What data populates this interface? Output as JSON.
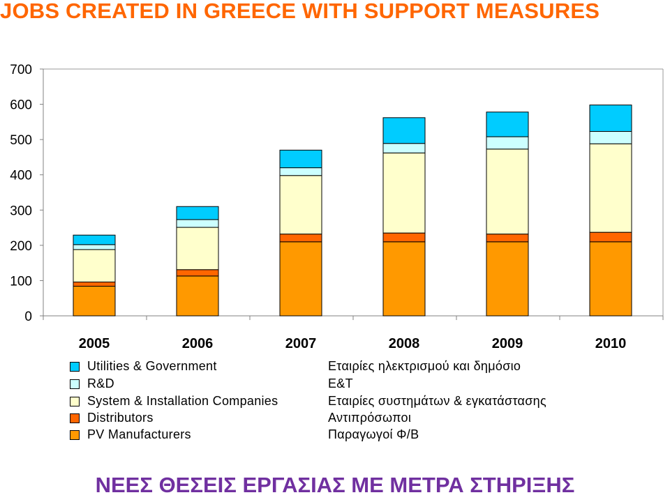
{
  "header": {
    "title": "JOBS CREATED IN GREECE WITH SUPPORT MEASURES",
    "subtitle": "ΝΕΕΣ ΘΕΣΕΙΣ ΕΡΓΑΣΙΑΣ ΜΕ ΜΕΤΡΑ ΣΤΗΡΙΞΗΣ"
  },
  "colors": {
    "title": "#ff6600",
    "subtitle": "#7030a0"
  },
  "chart_data": {
    "type": "bar",
    "stacked": true,
    "categories": [
      "2005",
      "2006",
      "2007",
      "2008",
      "2009",
      "2010"
    ],
    "ylim": [
      0,
      700
    ],
    "yticks": [
      0,
      100,
      200,
      300,
      400,
      500,
      600,
      700
    ],
    "grid": false,
    "legend_position": "bottom",
    "series": [
      {
        "name": "PV Manufacturers",
        "name_gr": "Παραγωγοί Φ/Β",
        "color": "#ff9900",
        "values": [
          84,
          113,
          210,
          210,
          210,
          210
        ]
      },
      {
        "name": "Distributors",
        "name_gr": "Αντιπρόσωποι",
        "color": "#ff6600",
        "values": [
          12,
          18,
          22,
          25,
          22,
          27
        ]
      },
      {
        "name": "System & Installation Companies",
        "name_gr": "Εταιρίες συστημάτων & εγκατάστασης",
        "color": "#ffffcc",
        "values": [
          92,
          120,
          166,
          227,
          241,
          251
        ]
      },
      {
        "name": "R&D",
        "name_gr": "Ε&Τ",
        "color": "#ccffff",
        "values": [
          14,
          22,
          22,
          27,
          35,
          35
        ]
      },
      {
        "name": "Utilities & Government",
        "name_gr": "Εταιρίες ηλεκτρισμού και δημόσιο",
        "color": "#00ccff",
        "values": [
          27,
          37,
          50,
          73,
          70,
          75
        ]
      }
    ]
  }
}
